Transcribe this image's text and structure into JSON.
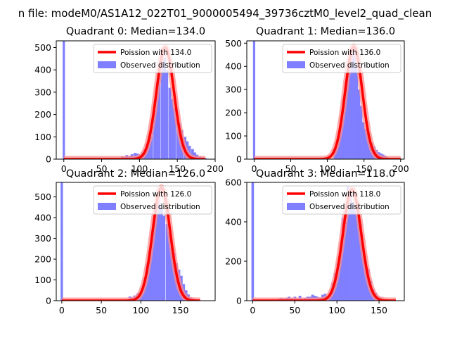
{
  "figure_title": "n file: modeM0/AS1A12_022T01_9000005494_39736cztM0_level2_quad_clean",
  "colors": {
    "histogram": "#7f7fff",
    "poisson_line": "#ff0000",
    "poisson_line_under": "#ff8c8c",
    "axes": "#000000",
    "background": "#ffffff"
  },
  "chart_data": [
    {
      "type": "bar",
      "title": "Quadrant 0: Median=134.0",
      "median": 134,
      "legend": {
        "position": "top-right",
        "line_label": "Poission with 134.0",
        "bar_label": "Observed distribution"
      },
      "xlim": [
        -10,
        200
      ],
      "ylim": [
        0,
        530
      ],
      "xticks": [
        0,
        50,
        100,
        150,
        200
      ],
      "yticks": [
        0,
        100,
        200,
        300,
        400,
        500
      ],
      "xticklabels": [
        "0",
        "50",
        "100",
        "150",
        "200"
      ],
      "yticklabels": [
        "0",
        "100",
        "200",
        "300",
        "400",
        "500"
      ],
      "spike": {
        "x": 0,
        "value": 530
      },
      "series": [
        {
          "name": "Observed distribution",
          "bins": [
            [
              37,
              3
            ],
            [
              77,
              12
            ],
            [
              80,
              10
            ],
            [
              83,
              18
            ],
            [
              87,
              15
            ],
            [
              90,
              22
            ],
            [
              94,
              28
            ],
            [
              97,
              25
            ],
            [
              100,
              20
            ],
            [
              104,
              30
            ],
            [
              107,
              45
            ],
            [
              110,
              70
            ],
            [
              113,
              105
            ],
            [
              116,
              150
            ],
            [
              120,
              220
            ],
            [
              123,
              300
            ],
            [
              126,
              410
            ],
            [
              130,
              450
            ],
            [
              133,
              455
            ],
            [
              136,
              400
            ],
            [
              140,
              320
            ],
            [
              143,
              270
            ],
            [
              146,
              230
            ],
            [
              150,
              190
            ],
            [
              153,
              160
            ],
            [
              156,
              130
            ],
            [
              160,
              100
            ],
            [
              163,
              80
            ],
            [
              166,
              60
            ],
            [
              170,
              45
            ],
            [
              173,
              30
            ],
            [
              176,
              20
            ],
            [
              180,
              12
            ],
            [
              183,
              8
            ],
            [
              187,
              5
            ]
          ],
          "bin_width": 3.3
        },
        {
          "name": "Poission with 134.0",
          "mean": 134,
          "peak": 500,
          "x_range": [
            0,
            187
          ]
        }
      ]
    },
    {
      "type": "bar",
      "title": "Quadrant 1: Median=136.0",
      "median": 136,
      "legend": {
        "position": "top-right",
        "line_label": "Poission with 136.0",
        "bar_label": "Observed distribution"
      },
      "xlim": [
        -10,
        205
      ],
      "ylim": [
        0,
        510
      ],
      "xticks": [
        0,
        50,
        100,
        150,
        200
      ],
      "yticks": [
        0,
        100,
        200,
        300,
        400,
        500
      ],
      "xticklabels": [
        "0",
        "50",
        "100",
        "150",
        "200"
      ],
      "yticklabels": [
        "0",
        "100",
        "200",
        "300",
        "400",
        "500"
      ],
      "spike": {
        "x": 0,
        "value": 510
      },
      "series": [
        {
          "name": "Observed distribution",
          "bins": [
            [
              110,
              40
            ],
            [
              113,
              50
            ],
            [
              116,
              100
            ],
            [
              119,
              150
            ],
            [
              122,
              260
            ],
            [
              125,
              330
            ],
            [
              128,
              410
            ],
            [
              131,
              450
            ],
            [
              134,
              480
            ],
            [
              137,
              460
            ],
            [
              140,
              400
            ],
            [
              143,
              300
            ],
            [
              146,
              230
            ],
            [
              149,
              160
            ],
            [
              152,
              130
            ],
            [
              155,
              110
            ],
            [
              158,
              90
            ],
            [
              161,
              70
            ],
            [
              164,
              55
            ],
            [
              167,
              40
            ],
            [
              170,
              30
            ],
            [
              173,
              25
            ],
            [
              176,
              20
            ],
            [
              179,
              15
            ],
            [
              182,
              8
            ],
            [
              185,
              5
            ]
          ],
          "bin_width": 3
        },
        {
          "name": "Poission with 136.0",
          "mean": 136,
          "peak": 485,
          "x_range": [
            0,
            200
          ]
        }
      ]
    },
    {
      "type": "bar",
      "title": "Quadrant 2: Median=126.0",
      "median": 126,
      "legend": {
        "position": "top-right",
        "line_label": "Poission with 126.0",
        "bar_label": "Observed distribution"
      },
      "xlim": [
        -7,
        194
      ],
      "ylim": [
        0,
        570
      ],
      "xticks": [
        0,
        50,
        100,
        150
      ],
      "yticks": [
        0,
        100,
        200,
        300,
        400,
        500
      ],
      "xticklabels": [
        "0",
        "50",
        "100",
        "150"
      ],
      "yticklabels": [
        "0",
        "100",
        "200",
        "300",
        "400",
        "500"
      ],
      "spike": {
        "x": 0,
        "value": 570
      },
      "series": [
        {
          "name": "Observed distribution",
          "bins": [
            [
              74,
              5
            ],
            [
              80,
              5
            ],
            [
              86,
              20
            ],
            [
              89,
              15
            ],
            [
              92,
              25
            ],
            [
              96,
              35
            ],
            [
              99,
              40
            ],
            [
              102,
              40
            ],
            [
              105,
              100
            ],
            [
              108,
              180
            ],
            [
              111,
              240
            ],
            [
              114,
              300
            ],
            [
              117,
              400
            ],
            [
              120,
              470
            ],
            [
              123,
              480
            ],
            [
              126,
              450
            ],
            [
              129,
              410
            ],
            [
              133,
              370
            ],
            [
              136,
              330
            ],
            [
              139,
              260
            ],
            [
              142,
              230
            ],
            [
              145,
              180
            ],
            [
              148,
              150
            ],
            [
              151,
              120
            ],
            [
              154,
              80
            ],
            [
              157,
              50
            ],
            [
              160,
              30
            ],
            [
              163,
              15
            ],
            [
              166,
              10
            ]
          ],
          "bin_width": 3.2
        },
        {
          "name": "Poission with 126.0",
          "mean": 126,
          "peak": 545,
          "x_range": [
            0,
            175
          ]
        }
      ]
    },
    {
      "type": "bar",
      "title": "Quadrant 3: Median=118.0",
      "median": 118,
      "legend": {
        "position": "top-right",
        "line_label": "Poission with 118.0",
        "bar_label": "Observed distribution"
      },
      "xlim": [
        -7,
        180
      ],
      "ylim": [
        0,
        600
      ],
      "xticks": [
        0,
        50,
        100,
        150
      ],
      "yticks": [
        0,
        200,
        400,
        600
      ],
      "xticklabels": [
        "0",
        "50",
        "100",
        "150"
      ],
      "yticklabels": [
        "0",
        "200",
        "400",
        "600"
      ],
      "spike": {
        "x": 0,
        "value": 600
      },
      "series": [
        {
          "name": "Observed distribution",
          "bins": [
            [
              25,
              5
            ],
            [
              31,
              10
            ],
            [
              34,
              15
            ],
            [
              37,
              10
            ],
            [
              40,
              15
            ],
            [
              43,
              20
            ],
            [
              46,
              15
            ],
            [
              50,
              20
            ],
            [
              53,
              10
            ],
            [
              56,
              25
            ],
            [
              59,
              10
            ],
            [
              62,
              15
            ],
            [
              65,
              20
            ],
            [
              68,
              20
            ],
            [
              71,
              30
            ],
            [
              74,
              25
            ],
            [
              77,
              20
            ],
            [
              80,
              15
            ],
            [
              83,
              30
            ],
            [
              86,
              35
            ],
            [
              89,
              20
            ],
            [
              92,
              40
            ],
            [
              95,
              90
            ],
            [
              98,
              140
            ],
            [
              101,
              190
            ],
            [
              104,
              240
            ],
            [
              107,
              420
            ],
            [
              110,
              400
            ],
            [
              113,
              580
            ],
            [
              116,
              560
            ],
            [
              119,
              500
            ],
            [
              122,
              480
            ],
            [
              125,
              430
            ],
            [
              128,
              390
            ],
            [
              131,
              270
            ],
            [
              134,
              200
            ],
            [
              137,
              160
            ],
            [
              140,
              100
            ],
            [
              143,
              60
            ],
            [
              146,
              40
            ],
            [
              149,
              20
            ],
            [
              152,
              15
            ]
          ],
          "bin_width": 3
        },
        {
          "name": "Poission with 118.0",
          "mean": 118,
          "peak": 565,
          "x_range": [
            0,
            170
          ]
        }
      ]
    }
  ]
}
